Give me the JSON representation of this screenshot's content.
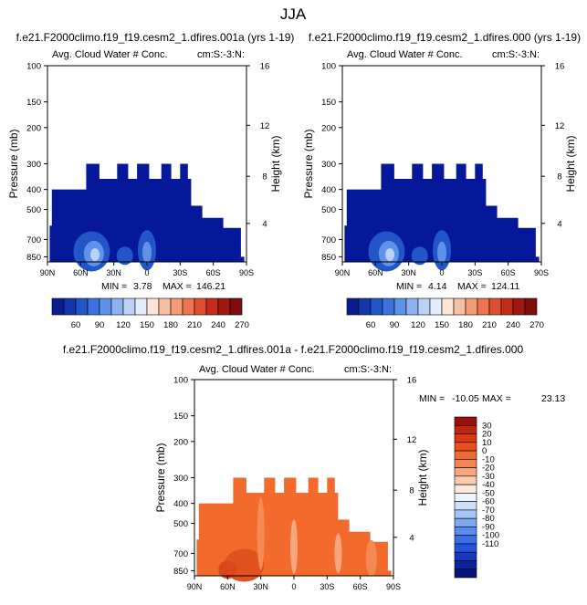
{
  "page": {
    "title": "JJA"
  },
  "colors": {
    "seq": [
      "#0a1d8f",
      "#1436ad",
      "#2255c7",
      "#3b72dd",
      "#5f93e8",
      "#8db2f0",
      "#b9d2f6",
      "#e2edfb",
      "#fde4d6",
      "#f8c0a2",
      "#f39b75",
      "#ec7450",
      "#df4f2e",
      "#c62c1a",
      "#a11710",
      "#7a0c0c"
    ],
    "diff": [
      "#08157a",
      "#0d24a0",
      "#1838c2",
      "#2552db",
      "#3b6ee6",
      "#5a8cec",
      "#7fa8f1",
      "#a6c4f5",
      "#cddff9",
      "#edf4fd",
      "#fde9dd",
      "#fbcbb0",
      "#f7a57e",
      "#f28455",
      "#ef6a35",
      "#e8501e",
      "#d93a12",
      "#bf2610",
      "#9a120d"
    ],
    "region_seq": "#06189a",
    "region_diff": "#f26b2d"
  },
  "chart_data": [
    {
      "type": "contour",
      "panel_title": "f.e21.F2000climo.f19_f19.cesm2_1.dfires.001a (yrs 1-19)",
      "left_label": "Avg. Cloud Water # Conc.",
      "right_label": "cm:S:-3:N:",
      "ylabel": "Pressure (mb)",
      "ylabel_right": "Height (km)",
      "pressure_ticks": [
        "100",
        "150",
        "200",
        "300",
        "400",
        "500",
        "700",
        "850"
      ],
      "height_ticks": [
        "16",
        "12",
        "8",
        "4"
      ],
      "lat_ticks": [
        "90N",
        "60N",
        "30N",
        "0",
        "30S",
        "60S",
        "90S"
      ],
      "min_label": "MIN = ",
      "min_value": "3.78",
      "max_label": "MAX = ",
      "max_value": "146.21",
      "levels": [
        60,
        90,
        120,
        150,
        180,
        210,
        240,
        270
      ],
      "level_labels": [
        "60",
        "90",
        "120",
        "150",
        "180",
        "210",
        "240",
        "270"
      ]
    },
    {
      "type": "contour",
      "panel_title": "f.e21.F2000climo.f19_f19.cesm2_1.dfires.000 (yrs 1-19)",
      "left_label": "Avg. Cloud Water # Conc.",
      "right_label": "cm:S:-3:N:",
      "ylabel": "Pressure (mb)",
      "ylabel_right": "Height (km)",
      "pressure_ticks": [
        "100",
        "150",
        "200",
        "300",
        "400",
        "500",
        "700",
        "850"
      ],
      "height_ticks": [
        "16",
        "12",
        "8",
        "4"
      ],
      "lat_ticks": [
        "90N",
        "60N",
        "30N",
        "0",
        "30S",
        "60S",
        "90S"
      ],
      "min_label": "MIN = ",
      "min_value": "4.14",
      "max_label": "MAX = ",
      "max_value": "124.11",
      "levels": [
        60,
        90,
        120,
        150,
        180,
        210,
        240,
        270
      ],
      "level_labels": [
        "60",
        "90",
        "120",
        "150",
        "180",
        "210",
        "240",
        "270"
      ]
    },
    {
      "type": "contour",
      "panel_title": "f.e21.F2000climo.f19_f19.cesm2_1.dfires.001a - f.e21.F2000climo.f19_f19.cesm2_1.dfires.000",
      "left_label": "Avg. Cloud Water # Conc.",
      "right_label": "cm:S:-3:N:",
      "ylabel": "Pressure (mb)",
      "ylabel_right": "Height (km)",
      "pressure_ticks": [
        "100",
        "150",
        "200",
        "300",
        "400",
        "500",
        "700",
        "850"
      ],
      "height_ticks": [
        "16",
        "12",
        "8",
        "4"
      ],
      "lat_ticks": [
        "90N",
        "60N",
        "30N",
        "0",
        "30S",
        "60S",
        "90S"
      ],
      "min_label": "MIN = ",
      "min_value": "-10.05",
      "max_label": "MAX = ",
      "max_value": "23.13",
      "levels": [
        30,
        20,
        10,
        0,
        -10,
        -20,
        -30,
        -40,
        -50,
        -60,
        -70,
        -80,
        -90,
        -100,
        -110
      ],
      "level_labels": [
        "30",
        "20",
        "10",
        "0",
        "-10",
        "-20",
        "-30",
        "-40",
        "-50",
        "-60",
        "-70",
        "-80",
        "-90",
        "-100",
        "-110"
      ]
    }
  ]
}
